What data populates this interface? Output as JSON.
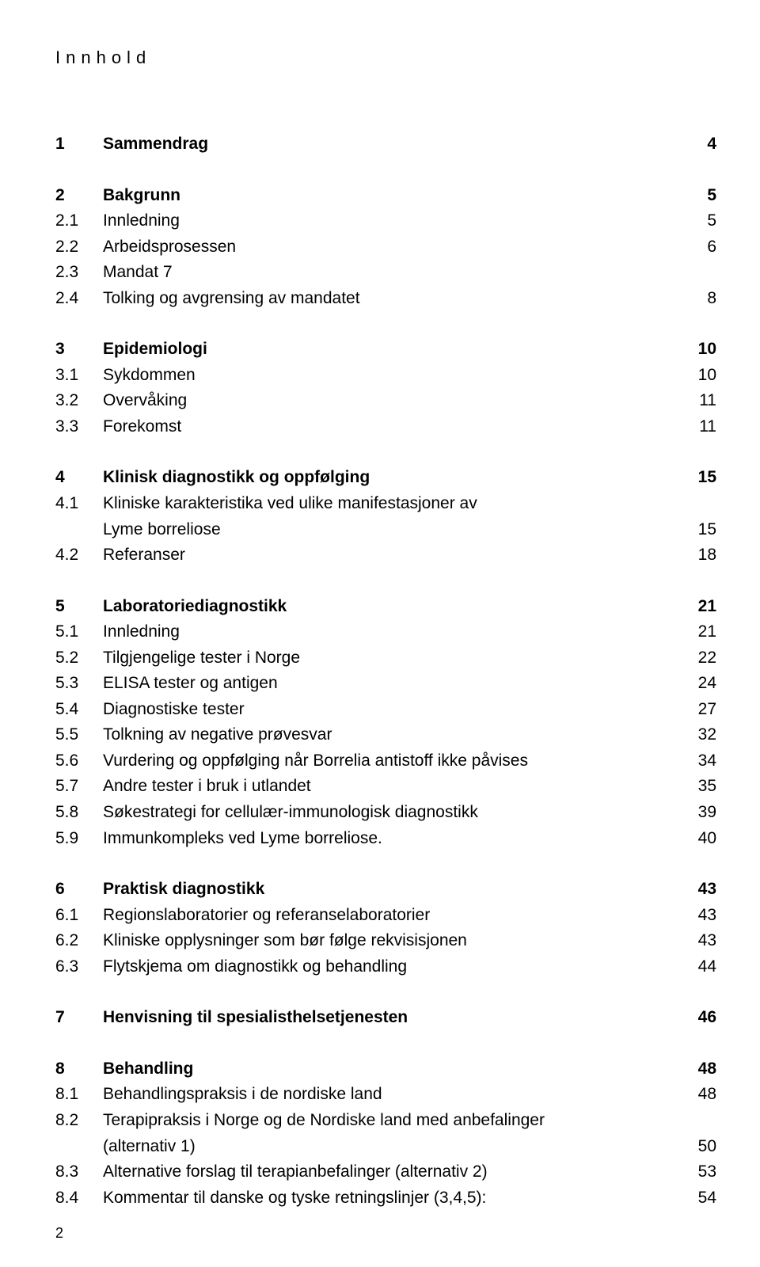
{
  "title": "Innhold",
  "sections": [
    {
      "header": {
        "num": "1",
        "text": "Sammendrag",
        "page": "4"
      },
      "subs": []
    },
    {
      "header": {
        "num": "2",
        "text": "Bakgrunn",
        "page": "5"
      },
      "subs": [
        {
          "num": "2.1",
          "text": "Innledning",
          "page": "5"
        },
        {
          "num": "2.2",
          "text": "Arbeidsprosessen",
          "page": "6"
        },
        {
          "num": "2.3",
          "text": "Mandat 7",
          "page": ""
        },
        {
          "num": "2.4",
          "text": "Tolking og avgrensing av mandatet",
          "page": "8"
        }
      ]
    },
    {
      "header": {
        "num": "3",
        "text": "Epidemiologi",
        "page": "10"
      },
      "subs": [
        {
          "num": "3.1",
          "text": "Sykdommen",
          "page": "10"
        },
        {
          "num": "3.2",
          "text": "Overvåking",
          "page": "11"
        },
        {
          "num": "3.3",
          "text": "Forekomst",
          "page": "11"
        }
      ]
    },
    {
      "header": {
        "num": "4",
        "text": "Klinisk diagnostikk og oppfølging",
        "page": "15"
      },
      "subs": [
        {
          "num": "4.1",
          "text": "Kliniske karakteristika ved ulike manifestasjoner av",
          "page": "",
          "cont": "Lyme borreliose",
          "contPage": "15"
        },
        {
          "num": "4.2",
          "text": "Referanser",
          "page": "18"
        }
      ]
    },
    {
      "header": {
        "num": "5",
        "text": "Laboratoriediagnostikk",
        "page": "21"
      },
      "subs": [
        {
          "num": "5.1",
          "text": "Innledning",
          "page": "21"
        },
        {
          "num": "5.2",
          "text": "Tilgjengelige tester i Norge",
          "page": "22"
        },
        {
          "num": "5.3",
          "text": "ELISA tester og antigen",
          "page": "24"
        },
        {
          "num": "5.4",
          "text": "Diagnostiske tester",
          "page": "27"
        },
        {
          "num": "5.5",
          "text": "Tolkning av negative prøvesvar",
          "page": "32"
        },
        {
          "num": "5.6",
          "text": "Vurdering og oppfølging når Borrelia antistoff ikke påvises",
          "page": "34"
        },
        {
          "num": "5.7",
          "text": "Andre tester i bruk i utlandet",
          "page": "35"
        },
        {
          "num": "5.8",
          "text": "Søkestrategi for cellulær-immunologisk diagnostikk",
          "page": "39"
        },
        {
          "num": "5.9",
          "text": "Immunkompleks ved Lyme borreliose.",
          "page": "40"
        }
      ]
    },
    {
      "header": {
        "num": "6",
        "text": "Praktisk diagnostikk",
        "page": "43"
      },
      "subs": [
        {
          "num": "6.1",
          "text": "Regionslaboratorier og referanselaboratorier",
          "page": "43"
        },
        {
          "num": "6.2",
          "text": "Kliniske opplysninger som bør følge rekvisisjonen",
          "page": "43"
        },
        {
          "num": "6.3",
          "text": "Flytskjema om diagnostikk og behandling",
          "page": "44"
        }
      ]
    },
    {
      "header": {
        "num": "7",
        "text": "Henvisning til spesialisthelsetjenesten",
        "page": "46"
      },
      "subs": []
    },
    {
      "header": {
        "num": "8",
        "text": "Behandling",
        "page": "48"
      },
      "subs": [
        {
          "num": "8.1",
          "text": "Behandlingspraksis i de nordiske land",
          "page": "48"
        },
        {
          "num": "8.2",
          "text": "Terapipraksis i Norge og de Nordiske land med anbefalinger",
          "page": "",
          "cont": "(alternativ 1)",
          "contPage": "50"
        },
        {
          "num": "8.3",
          "text": "Alternative forslag til terapianbefalinger (alternativ 2)",
          "page": "53"
        },
        {
          "num": "8.4",
          "text": "Kommentar til danske og tyske retningslinjer (3,4,5):",
          "page": "54"
        }
      ]
    }
  ],
  "footer": "2"
}
